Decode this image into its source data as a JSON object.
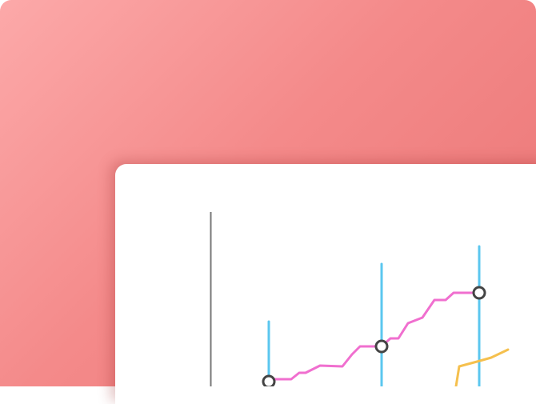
{
  "palette": {
    "background_top": "#fca9a9",
    "background_bottom": "#ea7474",
    "panel": "#ffffff",
    "axis": "#777777",
    "marker_line": "#5bc7ef",
    "series_pink": "#f06fcf",
    "series_yellow": "#f5c04e",
    "point_stroke": "#444444"
  },
  "illustration": {
    "description_icon": "chart-illustration",
    "highlight_count": 3
  }
}
